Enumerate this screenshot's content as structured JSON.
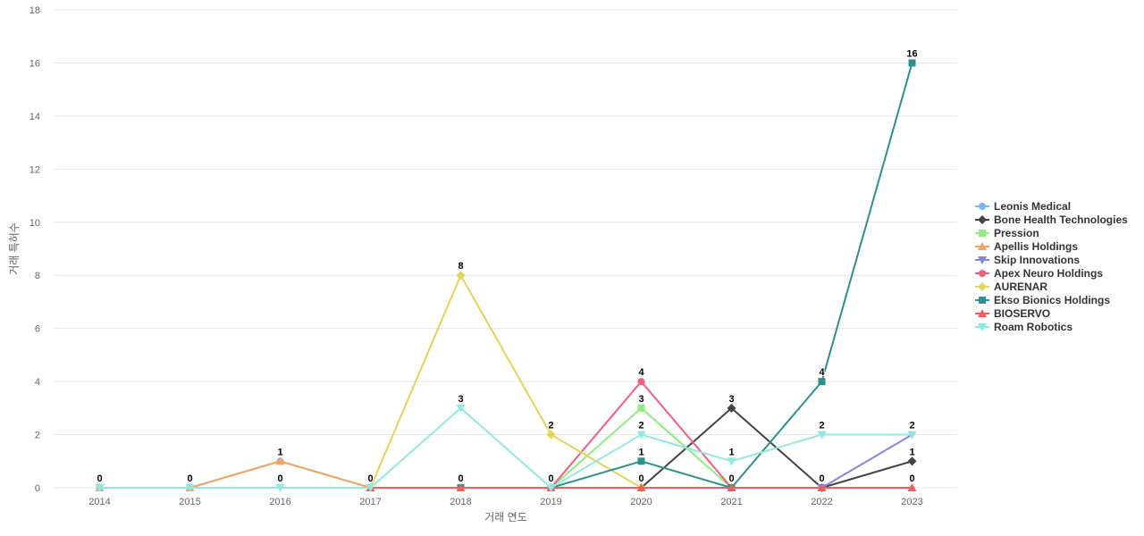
{
  "chart_data": {
    "type": "line",
    "title": "",
    "xlabel": "거래 연도",
    "ylabel": "거래 특허수",
    "ylim": [
      0,
      18
    ],
    "yticks": [
      0,
      2,
      4,
      6,
      8,
      10,
      12,
      14,
      16,
      18
    ],
    "grid": true,
    "legend_position": "right",
    "categories": [
      "2014",
      "2015",
      "2016",
      "2017",
      "2018",
      "2019",
      "2020",
      "2021",
      "2022",
      "2023"
    ],
    "series": [
      {
        "name": "Leonis Medical",
        "color": "#7cb5ec",
        "marker": "circle",
        "values": [
          0,
          0,
          1,
          0,
          null,
          null,
          null,
          null,
          null,
          null
        ]
      },
      {
        "name": "Bone Health Technologies",
        "color": "#434348",
        "marker": "diamond",
        "values": [
          null,
          null,
          null,
          null,
          null,
          null,
          0,
          3,
          0,
          1
        ]
      },
      {
        "name": "Pression",
        "color": "#90ed7d",
        "marker": "square",
        "values": [
          null,
          null,
          null,
          null,
          null,
          0,
          3,
          0,
          null,
          null
        ]
      },
      {
        "name": "Apellis Holdings",
        "color": "#f7a35c",
        "marker": "triangle",
        "values": [
          0,
          0,
          1,
          0,
          null,
          null,
          null,
          null,
          null,
          0
        ]
      },
      {
        "name": "Skip Innovations",
        "color": "#8085e9",
        "marker": "triangle-down",
        "values": [
          null,
          null,
          null,
          null,
          null,
          null,
          null,
          null,
          0,
          2
        ]
      },
      {
        "name": "Apex Neuro Holdings",
        "color": "#f15c80",
        "marker": "circle",
        "values": [
          null,
          null,
          null,
          null,
          null,
          0,
          4,
          0,
          null,
          null
        ]
      },
      {
        "name": "AURENAR",
        "color": "#e4d354",
        "marker": "diamond",
        "values": [
          null,
          null,
          null,
          0,
          8,
          2,
          0,
          null,
          null,
          null
        ]
      },
      {
        "name": "Ekso Bionics Holdings",
        "color": "#2b908f",
        "marker": "square",
        "values": [
          null,
          null,
          null,
          null,
          0,
          0,
          1,
          0,
          4,
          16
        ]
      },
      {
        "name": "BIOSERVO",
        "color": "#f45b5b",
        "marker": "triangle",
        "values": [
          null,
          null,
          null,
          0,
          0,
          0,
          0,
          0,
          0,
          0
        ]
      },
      {
        "name": "Roam Robotics",
        "color": "#91e8e1",
        "marker": "triangle-down",
        "values": [
          0,
          0,
          0,
          0,
          3,
          0,
          2,
          1,
          2,
          2
        ]
      }
    ],
    "data_labels": [
      {
        "x": "2014",
        "value": "0"
      },
      {
        "x": "2015",
        "value": "0"
      },
      {
        "x": "2016",
        "value": "1"
      },
      {
        "x": "2016",
        "value": "0"
      },
      {
        "x": "2017",
        "value": "0"
      },
      {
        "x": "2018",
        "value": "8"
      },
      {
        "x": "2018",
        "value": "3"
      },
      {
        "x": "2018",
        "value": "0"
      },
      {
        "x": "2019",
        "value": "2"
      },
      {
        "x": "2019",
        "value": "0"
      },
      {
        "x": "2020",
        "value": "4"
      },
      {
        "x": "2020",
        "value": "3"
      },
      {
        "x": "2020",
        "value": "2"
      },
      {
        "x": "2020",
        "value": "1"
      },
      {
        "x": "2020",
        "value": "0"
      },
      {
        "x": "2021",
        "value": "3"
      },
      {
        "x": "2021",
        "value": "1"
      },
      {
        "x": "2021",
        "value": "0"
      },
      {
        "x": "2022",
        "value": "4"
      },
      {
        "x": "2022",
        "value": "2"
      },
      {
        "x": "2022",
        "value": "0"
      },
      {
        "x": "2023",
        "value": "16"
      },
      {
        "x": "2023",
        "value": "2"
      },
      {
        "x": "2023",
        "value": "1"
      },
      {
        "x": "2023",
        "value": "0"
      }
    ]
  }
}
